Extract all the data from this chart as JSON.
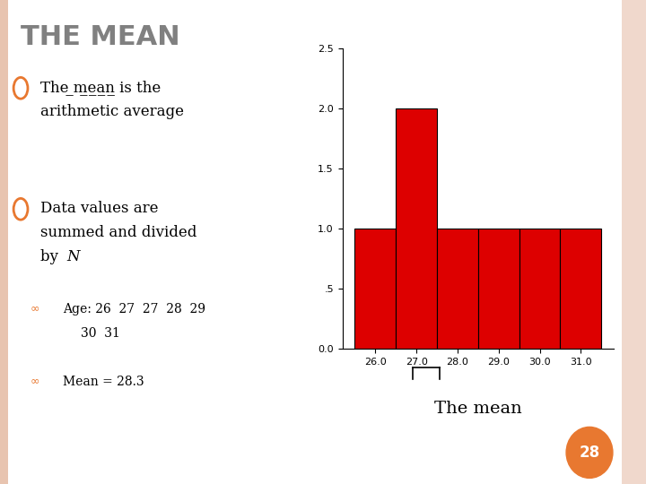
{
  "title": "THE MEAN",
  "background_color": "#ffffff",
  "slide_bg": "#f0d8cc",
  "left_bar_color": "#e8c4b0",
  "title_color": "#808080",
  "title_fontsize": 22,
  "bullet_color": "#e87830",
  "caption_text": "The mean",
  "page_number": "28",
  "page_badge_color": "#e87830",
  "histogram_values": [
    26,
    27,
    27,
    28,
    29,
    30,
    31
  ],
  "hist_color": "#dd0000",
  "hist_edgecolor": "#000000",
  "hist_bins": [
    25.5,
    26.5,
    27.5,
    28.5,
    29.5,
    30.5,
    31.5
  ],
  "ylim": [
    0,
    2.5
  ],
  "yticks": [
    0.0,
    0.5,
    1.0,
    1.5,
    2.0,
    2.5
  ],
  "ytick_labels": [
    "0.0",
    ".5",
    "1.0",
    "1.5",
    "2.0",
    "2.5"
  ],
  "xticks": [
    26.0,
    27.0,
    28.0,
    29.0,
    30.0,
    31.0
  ],
  "xtick_labels": [
    "26.0",
    "27.0",
    "28.0",
    "29.0",
    "30.0",
    "31.0"
  ]
}
